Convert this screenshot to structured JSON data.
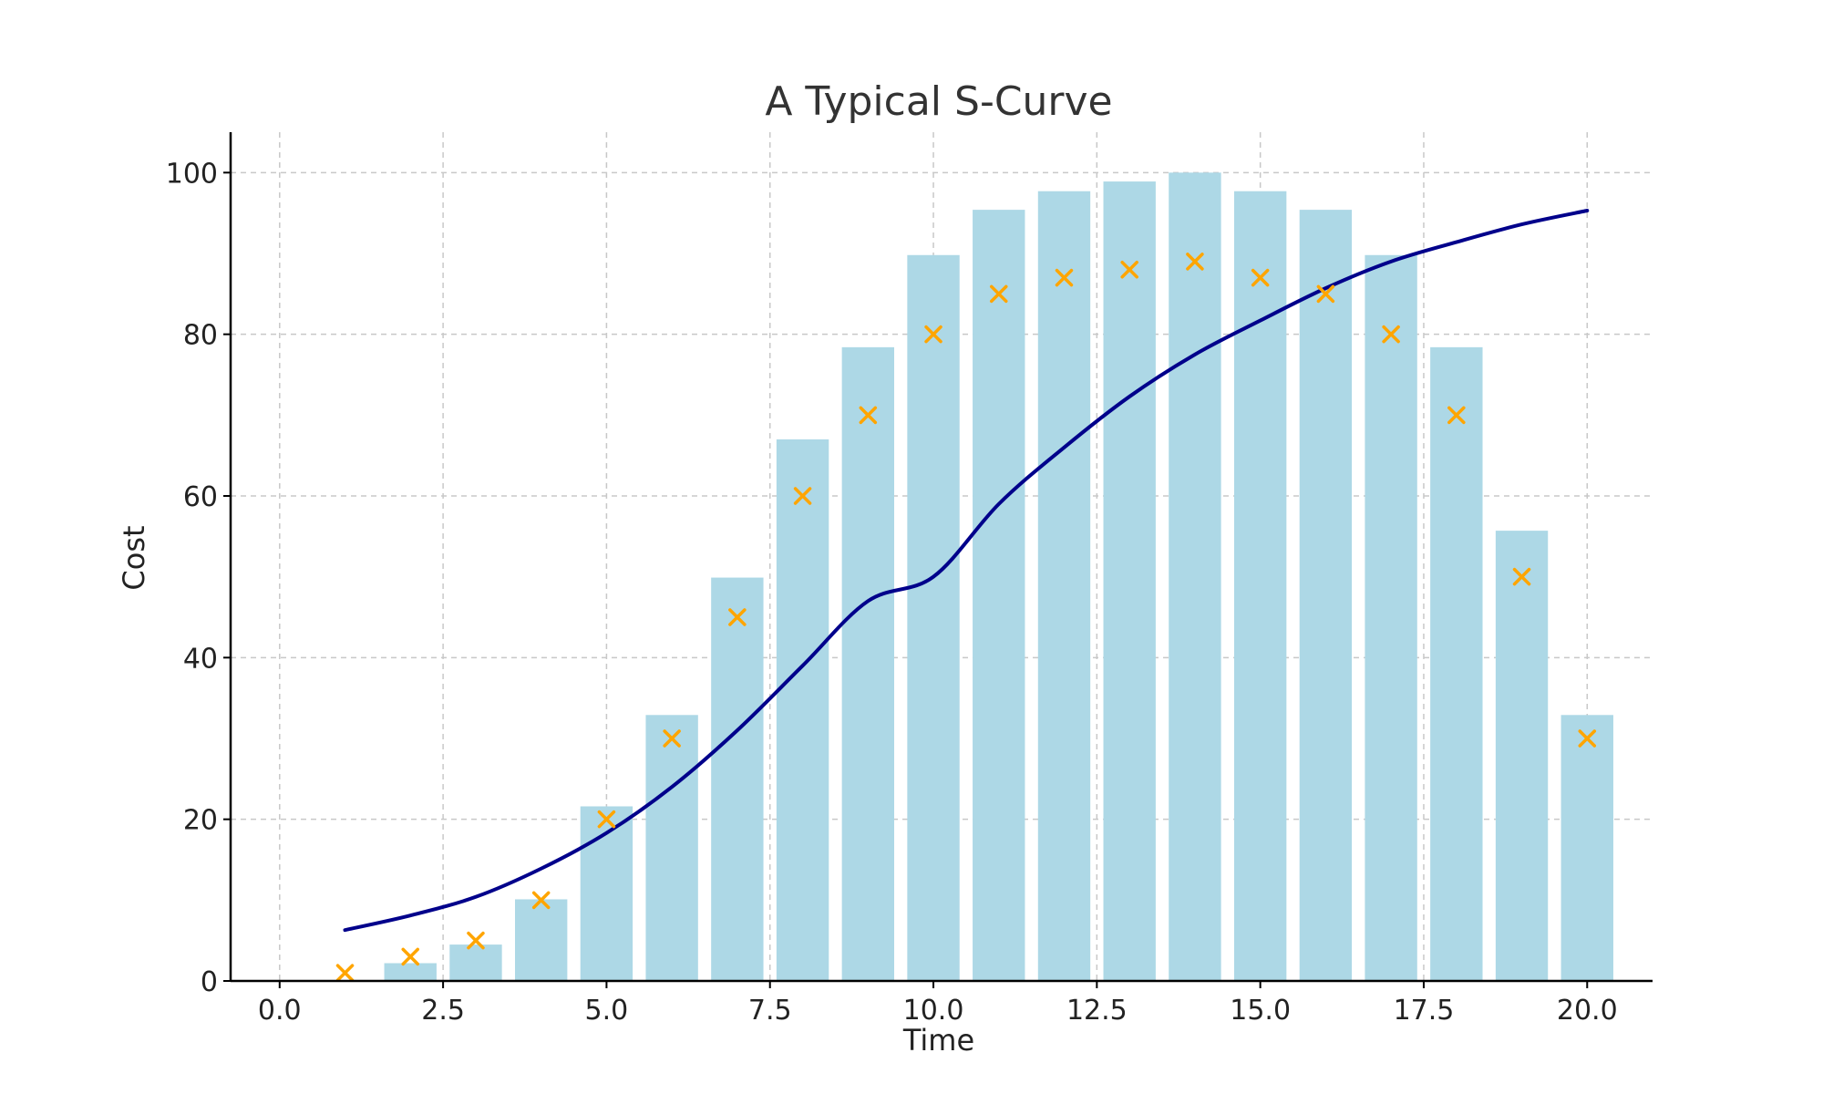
{
  "chart_data": {
    "type": "bar",
    "title": "A Typical S-Curve",
    "xlabel": "Time",
    "ylabel": "Cost",
    "xlim": [
      -0.75,
      21.0
    ],
    "ylim": [
      0,
      105
    ],
    "grid": true,
    "xticks": [
      "0.0",
      "2.5",
      "5.0",
      "7.5",
      "10.0",
      "12.5",
      "15.0",
      "17.5",
      "20.0"
    ],
    "yticks": [
      "0",
      "20",
      "40",
      "60",
      "80",
      "100"
    ],
    "bar_series": {
      "x": [
        1,
        2,
        3,
        4,
        5,
        6,
        7,
        8,
        9,
        10,
        11,
        12,
        13,
        14,
        15,
        16,
        17,
        18,
        19,
        20
      ],
      "values": [
        0,
        2.2,
        4.5,
        10.1,
        21.6,
        32.9,
        49.9,
        67.0,
        78.4,
        89.8,
        95.4,
        97.7,
        98.9,
        100,
        97.7,
        95.4,
        89.8,
        78.4,
        55.7,
        32.9
      ],
      "color": "#add8e6"
    },
    "marker_series": {
      "x": [
        1,
        2,
        3,
        4,
        5,
        6,
        7,
        8,
        9,
        10,
        11,
        12,
        13,
        14,
        15,
        16,
        17,
        18,
        19,
        20
      ],
      "values": [
        1,
        3,
        5,
        10,
        20,
        30,
        45,
        60,
        70,
        80,
        85,
        87,
        88,
        89,
        87,
        85,
        80,
        70,
        50,
        30
      ],
      "marker": "x",
      "color": "#ffa500"
    },
    "line_series": {
      "x": [
        1,
        2,
        3,
        4,
        5,
        6,
        7,
        8,
        9,
        10,
        11,
        12,
        13,
        14,
        15,
        16,
        17,
        18,
        19,
        20
      ],
      "values": [
        6.3,
        8.1,
        10.4,
        13.9,
        18.3,
        24.0,
        31.0,
        39.0,
        47.0,
        50.0,
        59.0,
        66.0,
        72.3,
        77.5,
        81.7,
        85.7,
        89.0,
        91.4,
        93.6,
        95.3
      ],
      "color": "#00008b"
    }
  }
}
